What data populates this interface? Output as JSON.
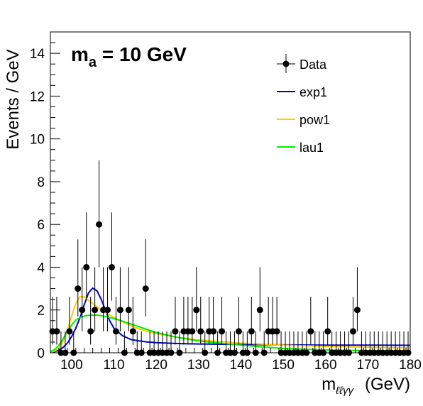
{
  "chart_data": {
    "type": "scatter",
    "annotation": {
      "main": "m",
      "sub": "a",
      "rest": " = 10 GeV"
    },
    "xlabel": {
      "main": "m",
      "sub": "ℓℓγγ",
      "unit": "(GeV)"
    },
    "ylabel": "Events / GeV",
    "xlim": [
      95,
      180
    ],
    "ylim": [
      0,
      15
    ],
    "xticks": [
      100,
      110,
      120,
      130,
      140,
      150,
      160,
      170,
      180
    ],
    "yticks": [
      0,
      2,
      4,
      6,
      8,
      10,
      12,
      14
    ],
    "grid": false,
    "legend_position": "top-right",
    "data": {
      "name": "Data",
      "x": [
        95.5,
        96.5,
        97.5,
        98.5,
        99.5,
        100.5,
        101.5,
        102.5,
        103.5,
        104.5,
        105.5,
        106.5,
        107.5,
        108.5,
        109.5,
        110.5,
        111.5,
        112.5,
        113.5,
        114.5,
        115.5,
        116.5,
        117.5,
        118.5,
        119.5,
        120.5,
        121.5,
        122.5,
        123.5,
        124.5,
        125.5,
        126.5,
        127.5,
        128.5,
        129.5,
        130.5,
        131.5,
        132.5,
        133.5,
        134.5,
        135.5,
        136.5,
        137.5,
        138.5,
        139.5,
        140.5,
        141.5,
        142.5,
        143.5,
        144.5,
        145.5,
        146.5,
        147.5,
        148.5,
        149.5,
        150.5,
        151.5,
        152.5,
        153.5,
        154.5,
        155.5,
        156.5,
        157.5,
        158.5,
        159.5,
        160.5,
        161.5,
        162.5,
        163.5,
        164.5,
        165.5,
        166.5,
        167.5,
        168.5,
        169.5,
        170.5,
        171.5,
        172.5,
        173.5,
        174.5,
        175.5,
        176.5,
        177.5,
        178.5,
        179.5
      ],
      "y": [
        1,
        1,
        0,
        0,
        1,
        0,
        3,
        2,
        4,
        1,
        2,
        6,
        2,
        2,
        4,
        1,
        2,
        0,
        2,
        1,
        0,
        0,
        3,
        0,
        0,
        0,
        0,
        0,
        0,
        1,
        0,
        1,
        1,
        1,
        2,
        1,
        0,
        1,
        1,
        0,
        1,
        0,
        0,
        0,
        1,
        0,
        0,
        1,
        0,
        2,
        0,
        1,
        1,
        1,
        0,
        0,
        0,
        0,
        0,
        0,
        0,
        1,
        0,
        0,
        0,
        1,
        0,
        0,
        0,
        0,
        0,
        1,
        2,
        0,
        0,
        0,
        0,
        0,
        0,
        0,
        0,
        0,
        0,
        0,
        0
      ]
    },
    "series": [
      {
        "name": "exp1",
        "color": "#0000cc",
        "x": [
          95,
          96,
          97,
          98,
          99,
          100,
          101,
          102,
          103,
          104,
          105,
          106,
          107,
          108,
          109,
          110,
          112,
          114,
          116,
          118,
          120,
          125,
          130,
          140,
          150,
          160,
          170,
          180
        ],
        "y": [
          0.02,
          0.05,
          0.12,
          0.25,
          0.45,
          0.75,
          1.15,
          1.65,
          2.25,
          2.8,
          3.02,
          2.9,
          2.5,
          2.0,
          1.5,
          1.15,
          0.8,
          0.62,
          0.55,
          0.5,
          0.47,
          0.43,
          0.41,
          0.39,
          0.37,
          0.36,
          0.36,
          0.35
        ]
      },
      {
        "name": "pow1",
        "color": "#ffcc00",
        "x": [
          95,
          96,
          97,
          98,
          99,
          100,
          101,
          102,
          103,
          104,
          105,
          106,
          107,
          108,
          110,
          112,
          115,
          118,
          120,
          125,
          130,
          140,
          150,
          160,
          170,
          180
        ],
        "y": [
          0.02,
          0.08,
          0.22,
          0.55,
          1.05,
          1.7,
          2.3,
          2.62,
          2.62,
          2.45,
          2.3,
          2.15,
          2.02,
          1.9,
          1.65,
          1.45,
          1.18,
          1.0,
          0.9,
          0.72,
          0.6,
          0.45,
          0.36,
          0.3,
          0.26,
          0.23
        ]
      },
      {
        "name": "lau1",
        "color": "#00ee00",
        "x": [
          95,
          96,
          97,
          98,
          99,
          100,
          101,
          102,
          103,
          104,
          105,
          106,
          107,
          108,
          109,
          110,
          112,
          115,
          118,
          120,
          125,
          130,
          135,
          140,
          145,
          150,
          160,
          170,
          180
        ],
        "y": [
          0.05,
          0.15,
          0.35,
          0.65,
          1.0,
          1.3,
          1.52,
          1.65,
          1.72,
          1.75,
          1.76,
          1.76,
          1.74,
          1.7,
          1.65,
          1.6,
          1.48,
          1.28,
          1.08,
          0.95,
          0.72,
          0.55,
          0.45,
          0.36,
          0.28,
          0.2,
          0.13,
          0.1,
          0.08
        ]
      }
    ]
  }
}
